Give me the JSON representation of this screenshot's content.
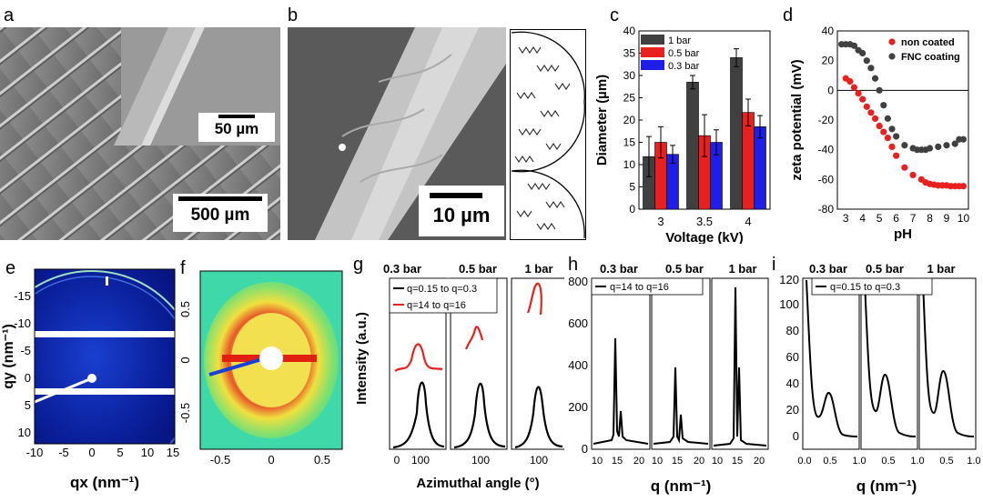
{
  "panels": {
    "a": {
      "letter": "a",
      "inset_scale": "50 µm",
      "main_scale": "500 µm"
    },
    "b": {
      "letter": "b",
      "scale": "10 µm"
    },
    "c": {
      "letter": "c"
    },
    "d": {
      "letter": "d"
    },
    "e": {
      "letter": "e",
      "xlabel": "qx (nm⁻¹)",
      "ylabel": "qy (nm⁻¹)",
      "xticks": [
        "-10",
        "-5",
        "0",
        "5",
        "10",
        "15"
      ],
      "yticks": [
        "-15",
        "-10",
        "-5",
        "0",
        "5",
        "10"
      ]
    },
    "f": {
      "letter": "f",
      "xticks": [
        "-0.5",
        "0",
        "0.5"
      ],
      "yticks": [
        "0.5",
        "0",
        "-0.5"
      ]
    },
    "g": {
      "letter": "g",
      "ylabel": "Intensity (a.u.)",
      "xlabel": "Azimuthal angle (°)",
      "subtitles": [
        "0.3 bar",
        "0.5 bar",
        "1 bar"
      ],
      "legend": [
        "q=0.15 to q=0.3",
        "q=14 to q=16"
      ],
      "xticks": [
        "0",
        "100"
      ]
    },
    "h": {
      "letter": "h",
      "xlabel": "q (nm⁻¹)",
      "subtitles": [
        "0.3 bar",
        "0.5 bar",
        "1 bar"
      ],
      "legend": [
        "q=14 to q=16"
      ],
      "yticks": [
        "0",
        "200",
        "400",
        "600",
        "800"
      ],
      "xticks": [
        "10",
        "15",
        "20"
      ]
    },
    "i": {
      "letter": "i",
      "xlabel": "q (nm⁻¹)",
      "subtitles": [
        "0.3 bar",
        "0.5 bar",
        "1 bar"
      ],
      "legend": [
        "q=0.15 to q=0.3"
      ],
      "yticks": [
        "0",
        "20",
        "40",
        "60",
        "80",
        "100",
        "120"
      ],
      "xticks": [
        "0.0",
        "0.5",
        "1.0"
      ]
    }
  },
  "chart_data": [
    {
      "id": "c",
      "type": "bar",
      "xlabel": "Voltage (kV)",
      "ylabel": "Diameter (µm)",
      "ylim": [
        0,
        40
      ],
      "categories": [
        "3",
        "3.5",
        "4"
      ],
      "yticks": [
        "0",
        "5",
        "10",
        "15",
        "20",
        "25",
        "30",
        "35",
        "40"
      ],
      "series": [
        {
          "name": "1 bar",
          "color": "#404040",
          "values": [
            11.8,
            28.5,
            34
          ],
          "errors": [
            4.5,
            1.5,
            2
          ]
        },
        {
          "name": "0.5 bar",
          "color": "#e8201e",
          "values": [
            15,
            16.5,
            21.7
          ],
          "errors": [
            3.5,
            4.7,
            3
          ]
        },
        {
          "name": "0.3 bar",
          "color": "#1e1ee8",
          "values": [
            12.3,
            15,
            18.5
          ],
          "errors": [
            2,
            2.8,
            2.5
          ]
        }
      ]
    },
    {
      "id": "d",
      "type": "scatter",
      "xlabel": "pH",
      "ylabel": "zeta potential (mV)",
      "xlim": [
        2.5,
        10.3
      ],
      "ylim": [
        -80,
        40
      ],
      "xticks": [
        "3",
        "4",
        "5",
        "6",
        "7",
        "8",
        "9",
        "10"
      ],
      "yticks": [
        "40",
        "20",
        "0",
        "-20",
        "-40",
        "-60",
        "-80"
      ],
      "series": [
        {
          "name": "non coated",
          "color": "#e8201e",
          "x": [
            3,
            3.25,
            3.5,
            3.75,
            4,
            4.25,
            4.5,
            4.75,
            5,
            5.25,
            5.5,
            5.75,
            6,
            6.5,
            7,
            7.5,
            7.75,
            8,
            8.25,
            8.5,
            8.75,
            9,
            9.25,
            9.5,
            9.75,
            10
          ],
          "y": [
            8,
            6,
            2,
            -2,
            -6,
            -11,
            -15,
            -19,
            -24,
            -28,
            -32,
            -38,
            -44,
            -52,
            -57,
            -60,
            -62,
            -63,
            -63.5,
            -64,
            -64,
            -64,
            -64.5,
            -64.5,
            -64.5,
            -64.5
          ]
        },
        {
          "name": "FNC coating",
          "color": "#404040",
          "x": [
            2.75,
            3,
            3.25,
            3.5,
            3.75,
            4,
            4.25,
            4.5,
            4.75,
            5,
            5.25,
            5.5,
            5.75,
            6,
            6.5,
            7,
            7.25,
            7.5,
            7.75,
            8,
            8.5,
            9,
            9.5,
            9.75,
            10
          ],
          "y": [
            31,
            31,
            31,
            30,
            27,
            25,
            20,
            15,
            8,
            0,
            -10,
            -19,
            -26,
            -31,
            -37,
            -39,
            -40,
            -40,
            -40,
            -39,
            -38,
            -37,
            -36,
            -33,
            -33
          ]
        }
      ]
    }
  ]
}
